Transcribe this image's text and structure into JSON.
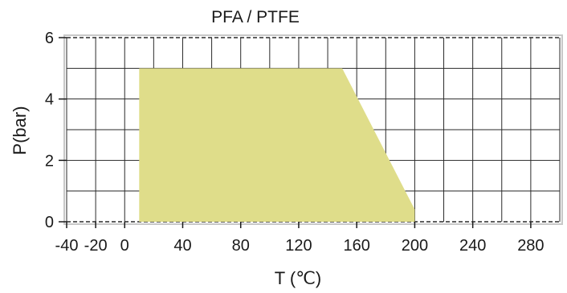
{
  "chart_data": {
    "type": "area",
    "title": "PFA / PTFE",
    "xlabel": "T (℃)",
    "ylabel": "P(bar)",
    "xlim": [
      -40,
      300
    ],
    "ylim": [
      0,
      6
    ],
    "x_ticks": [
      -40,
      -20,
      0,
      40,
      80,
      120,
      160,
      200,
      240,
      280
    ],
    "y_ticks": [
      0,
      2,
      4,
      6
    ],
    "grid": true,
    "series": [
      {
        "points": [
          {
            "x": 10,
            "y": 0
          },
          {
            "x": 10,
            "y": 5
          },
          {
            "x": 150,
            "y": 5
          },
          {
            "x": 200,
            "y": 0.4
          },
          {
            "x": 200,
            "y": 0
          }
        ]
      }
    ],
    "colors": {
      "fill": "#dfdd8a",
      "grid": "#2a2a2a",
      "plot_border": "#c8c8c8"
    }
  }
}
